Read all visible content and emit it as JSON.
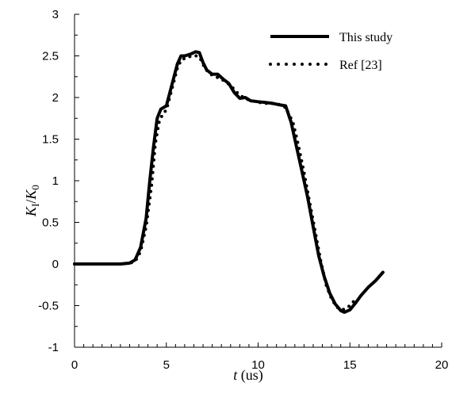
{
  "chart_data": {
    "type": "line",
    "xlabel_var": "t",
    "xlabel_unit": " (us)",
    "ylabel_num_var": "K",
    "ylabel_num_sub": "I",
    "ylabel_den_var": "K",
    "ylabel_den_sub": "0",
    "xlim": [
      0,
      20
    ],
    "ylim": [
      -1,
      3
    ],
    "xticks": [
      0,
      5,
      10,
      15,
      20
    ],
    "yticks": [
      -1,
      -0.5,
      0,
      0.5,
      1,
      1.5,
      2,
      2.5,
      3
    ],
    "grid": false,
    "legend_position": "top-right",
    "series": [
      {
        "name": "This study",
        "style": "solid",
        "color": "#000000",
        "x": [
          0,
          2.5,
          3.0,
          3.3,
          3.6,
          3.9,
          4.1,
          4.3,
          4.5,
          4.7,
          5.0,
          5.3,
          5.6,
          5.8,
          6.0,
          6.3,
          6.6,
          6.8,
          7.0,
          7.2,
          7.5,
          7.8,
          8.1,
          8.4,
          8.7,
          9.0,
          9.3,
          9.6,
          10.0,
          10.4,
          10.8,
          11.2,
          11.5,
          11.8,
          12.1,
          12.4,
          12.7,
          13.0,
          13.3,
          13.6,
          13.9,
          14.2,
          14.5,
          14.7,
          15.0,
          15.3,
          15.6,
          16.0,
          16.4,
          16.8
        ],
        "y": [
          0,
          0,
          0.01,
          0.05,
          0.2,
          0.55,
          1.0,
          1.4,
          1.75,
          1.86,
          1.9,
          2.15,
          2.4,
          2.5,
          2.5,
          2.52,
          2.55,
          2.54,
          2.42,
          2.33,
          2.28,
          2.28,
          2.22,
          2.17,
          2.06,
          1.99,
          2.0,
          1.96,
          1.95,
          1.94,
          1.93,
          1.91,
          1.9,
          1.7,
          1.4,
          1.1,
          0.8,
          0.45,
          0.1,
          -0.15,
          -0.35,
          -0.48,
          -0.56,
          -0.58,
          -0.55,
          -0.47,
          -0.38,
          -0.28,
          -0.2,
          -0.1
        ]
      },
      {
        "name": "Ref [23]",
        "style": "dotted",
        "color": "#000000",
        "x": [
          0,
          2.5,
          3.0,
          3.3,
          3.6,
          3.9,
          4.2,
          4.4,
          4.6,
          4.8,
          5.0,
          5.3,
          5.6,
          5.8,
          6.1,
          6.4,
          6.7,
          6.9,
          7.1,
          7.4,
          7.7,
          8.0,
          8.3,
          8.6,
          8.9,
          9.2,
          9.5,
          9.9,
          10.3,
          10.7,
          11.1,
          11.5,
          11.9,
          12.2,
          12.5,
          12.8,
          13.1,
          13.4,
          13.7,
          14.0,
          14.3,
          14.6,
          14.9,
          15.2
        ],
        "y": [
          0,
          0,
          0.01,
          0.03,
          0.15,
          0.45,
          0.95,
          1.45,
          1.7,
          1.8,
          1.85,
          2.1,
          2.35,
          2.45,
          2.48,
          2.5,
          2.5,
          2.45,
          2.35,
          2.28,
          2.25,
          2.22,
          2.18,
          2.12,
          2.05,
          2.0,
          1.97,
          1.95,
          1.93,
          1.93,
          1.92,
          1.88,
          1.7,
          1.42,
          1.1,
          0.75,
          0.4,
          0.05,
          -0.25,
          -0.42,
          -0.52,
          -0.55,
          -0.52,
          -0.45
        ]
      }
    ]
  }
}
